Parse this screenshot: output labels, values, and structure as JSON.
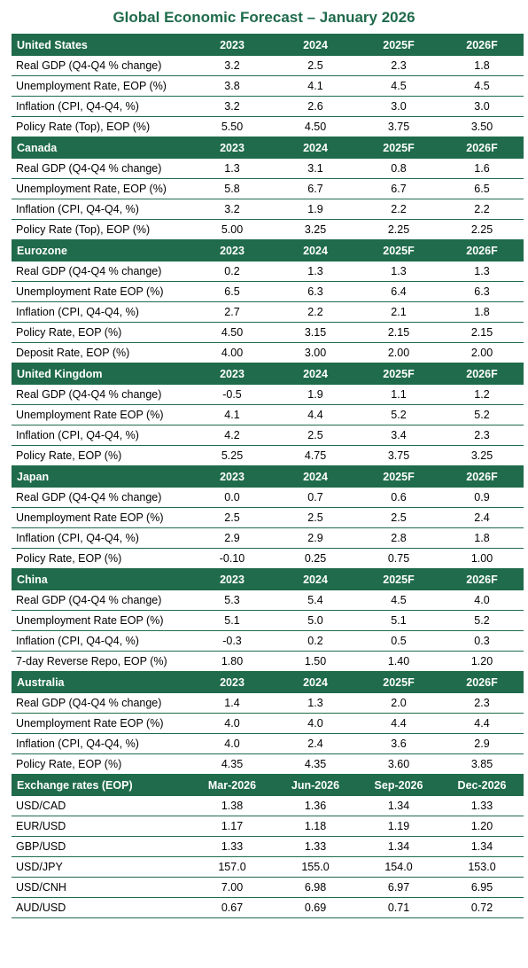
{
  "title": "Global Economic Forecast – January 2026",
  "sections": [
    {
      "name": "United States",
      "headers": [
        "2023",
        "2024",
        "2025F",
        "2026F"
      ],
      "rows": [
        {
          "label": "Real GDP (Q4-Q4 % change)",
          "values": [
            "3.2",
            "2.5",
            "2.3",
            "1.8"
          ]
        },
        {
          "label": "Unemployment Rate, EOP (%)",
          "values": [
            "3.8",
            "4.1",
            "4.5",
            "4.5"
          ]
        },
        {
          "label": "Inflation (CPI, Q4-Q4, %)",
          "values": [
            "3.2",
            "2.6",
            "3.0",
            "3.0"
          ]
        },
        {
          "label": "Policy Rate (Top), EOP (%)",
          "values": [
            "5.50",
            "4.50",
            "3.75",
            "3.50"
          ]
        }
      ]
    },
    {
      "name": "Canada",
      "headers": [
        "2023",
        "2024",
        "2025F",
        "2026F"
      ],
      "rows": [
        {
          "label": "Real GDP (Q4-Q4 % change)",
          "values": [
            "1.3",
            "3.1",
            "0.8",
            "1.6"
          ]
        },
        {
          "label": "Unemployment Rate, EOP (%)",
          "values": [
            "5.8",
            "6.7",
            "6.7",
            "6.5"
          ]
        },
        {
          "label": "Inflation (CPI, Q4-Q4, %)",
          "values": [
            "3.2",
            "1.9",
            "2.2",
            "2.2"
          ]
        },
        {
          "label": "Policy Rate (Top), EOP (%)",
          "values": [
            "5.00",
            "3.25",
            "2.25",
            "2.25"
          ]
        }
      ]
    },
    {
      "name": "Eurozone",
      "headers": [
        "2023",
        "2024",
        "2025F",
        "2026F"
      ],
      "rows": [
        {
          "label": "Real GDP (Q4-Q4 % change)",
          "values": [
            "0.2",
            "1.3",
            "1.3",
            "1.3"
          ]
        },
        {
          "label": "Unemployment Rate EOP (%)",
          "values": [
            "6.5",
            "6.3",
            "6.4",
            "6.3"
          ]
        },
        {
          "label": "Inflation (CPI, Q4-Q4, %)",
          "values": [
            "2.7",
            "2.2",
            "2.1",
            "1.8"
          ]
        },
        {
          "label": "Policy Rate, EOP (%)",
          "values": [
            "4.50",
            "3.15",
            "2.15",
            "2.15"
          ]
        },
        {
          "label": "Deposit Rate, EOP (%)",
          "values": [
            "4.00",
            "3.00",
            "2.00",
            "2.00"
          ]
        }
      ]
    },
    {
      "name": "United Kingdom",
      "headers": [
        "2023",
        "2024",
        "2025F",
        "2026F"
      ],
      "rows": [
        {
          "label": "Real GDP (Q4-Q4 % change)",
          "values": [
            "-0.5",
            "1.9",
            "1.1",
            "1.2"
          ]
        },
        {
          "label": "Unemployment Rate EOP (%)",
          "values": [
            "4.1",
            "4.4",
            "5.2",
            "5.2"
          ]
        },
        {
          "label": "Inflation (CPI, Q4-Q4, %)",
          "values": [
            "4.2",
            "2.5",
            "3.4",
            "2.3"
          ]
        },
        {
          "label": "Policy Rate, EOP (%)",
          "values": [
            "5.25",
            "4.75",
            "3.75",
            "3.25"
          ]
        }
      ]
    },
    {
      "name": "Japan",
      "headers": [
        "2023",
        "2024",
        "2025F",
        "2026F"
      ],
      "rows": [
        {
          "label": "Real GDP (Q4-Q4 % change)",
          "values": [
            "0.0",
            "0.7",
            "0.6",
            "0.9"
          ]
        },
        {
          "label": "Unemployment Rate EOP (%)",
          "values": [
            "2.5",
            "2.5",
            "2.5",
            "2.4"
          ]
        },
        {
          "label": "Inflation (CPI, Q4-Q4, %)",
          "values": [
            "2.9",
            "2.9",
            "2.8",
            "1.8"
          ]
        },
        {
          "label": "Policy Rate, EOP (%)",
          "values": [
            "-0.10",
            "0.25",
            "0.75",
            "1.00"
          ]
        }
      ]
    },
    {
      "name": "China",
      "headers": [
        "2023",
        "2024",
        "2025F",
        "2026F"
      ],
      "rows": [
        {
          "label": "Real GDP (Q4-Q4 % change)",
          "values": [
            "5.3",
            "5.4",
            "4.5",
            "4.0"
          ]
        },
        {
          "label": "Unemployment Rate EOP (%)",
          "values": [
            "5.1",
            "5.0",
            "5.1",
            "5.2"
          ]
        },
        {
          "label": "Inflation (CPI, Q4-Q4, %)",
          "values": [
            "-0.3",
            "0.2",
            "0.5",
            "0.3"
          ]
        },
        {
          "label": "7-day Reverse Repo, EOP (%)",
          "values": [
            "1.80",
            "1.50",
            "1.40",
            "1.20"
          ]
        }
      ]
    },
    {
      "name": "Australia",
      "headers": [
        "2023",
        "2024",
        "2025F",
        "2026F"
      ],
      "rows": [
        {
          "label": "Real GDP (Q4-Q4 % change)",
          "values": [
            "1.4",
            "1.3",
            "2.0",
            "2.3"
          ]
        },
        {
          "label": "Unemployment Rate EOP (%)",
          "values": [
            "4.0",
            "4.0",
            "4.4",
            "4.4"
          ]
        },
        {
          "label": "Inflation (CPI, Q4-Q4, %)",
          "values": [
            "4.0",
            "2.4",
            "3.6",
            "2.9"
          ]
        },
        {
          "label": "Policy Rate, EOP (%)",
          "values": [
            "4.35",
            "4.35",
            "3.60",
            "3.85"
          ]
        }
      ]
    },
    {
      "name": "Exchange rates (EOP)",
      "headers": [
        "Mar-2026",
        "Jun-2026",
        "Sep-2026",
        "Dec-2026"
      ],
      "rows": [
        {
          "label": "USD/CAD",
          "values": [
            "1.38",
            "1.36",
            "1.34",
            "1.33"
          ]
        },
        {
          "label": "EUR/USD",
          "values": [
            "1.17",
            "1.18",
            "1.19",
            "1.20"
          ]
        },
        {
          "label": "GBP/USD",
          "values": [
            "1.33",
            "1.33",
            "1.34",
            "1.34"
          ]
        },
        {
          "label": "USD/JPY",
          "values": [
            "157.0",
            "155.0",
            "154.0",
            "153.0"
          ]
        },
        {
          "label": "USD/CNH",
          "values": [
            "7.00",
            "6.98",
            "6.97",
            "6.95"
          ]
        },
        {
          "label": "AUD/USD",
          "values": [
            "0.67",
            "0.69",
            "0.71",
            "0.72"
          ]
        }
      ]
    }
  ]
}
